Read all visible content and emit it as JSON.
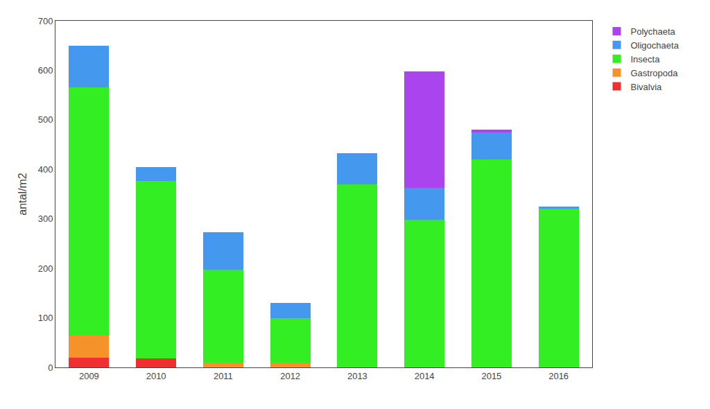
{
  "chart_data": {
    "type": "bar",
    "stacked": true,
    "categories": [
      "2009",
      "2010",
      "2011",
      "2012",
      "2013",
      "2014",
      "2015",
      "2016"
    ],
    "series": [
      {
        "name": "Bivalvia",
        "color": "#f03030",
        "values": [
          20,
          18,
          0,
          0,
          0,
          0,
          0,
          0
        ]
      },
      {
        "name": "Gastropoda",
        "color": "#f5922a",
        "values": [
          45,
          0,
          8,
          8,
          0,
          0,
          0,
          0
        ]
      },
      {
        "name": "Insecta",
        "color": "#33ee22",
        "values": [
          500,
          358,
          190,
          92,
          370,
          298,
          420,
          320
        ]
      },
      {
        "name": "Oligochaeta",
        "color": "#4499ee",
        "values": [
          85,
          28,
          75,
          30,
          62,
          65,
          55,
          5
        ]
      },
      {
        "name": "Polychaeta",
        "color": "#aa44ee",
        "values": [
          0,
          0,
          0,
          0,
          0,
          235,
          5,
          0
        ]
      }
    ],
    "ylabel": "antal/m2",
    "ylim": [
      0,
      700
    ],
    "yticks": [
      0,
      100,
      200,
      300,
      400,
      500,
      600,
      700
    ],
    "grid": false,
    "legend": "right"
  }
}
